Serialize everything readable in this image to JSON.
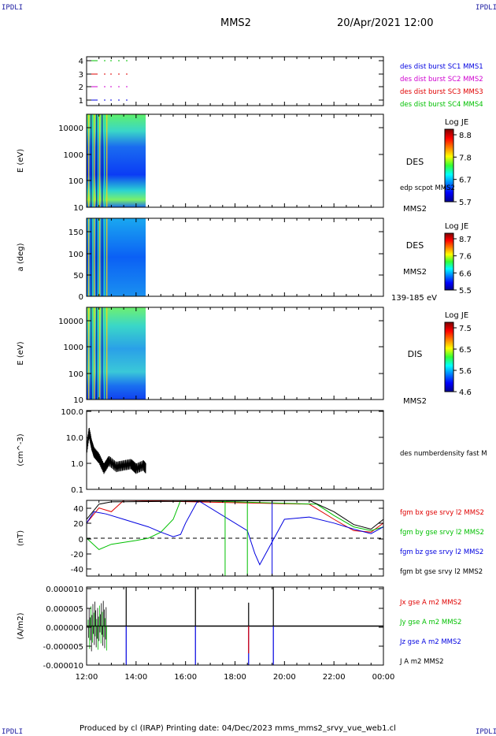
{
  "header": {
    "left_corner": "IPDLI",
    "right_corner": "IPDLI",
    "spacecraft": "MMS2",
    "datetime": "20/Apr/2021 12:00"
  },
  "footer": {
    "text": "Produced by cl (IRAP)   Printing date: 04/Dec/2023   mms_mms2_srvy_vue_web1.cl",
    "bottom_left_corner": "IPDLI",
    "bottom_right_corner": "IPDLI"
  },
  "colors": {
    "red": "#e00000",
    "green": "#00c000",
    "blue": "#0000e0",
    "magenta": "#d000d0",
    "black": "#000000"
  },
  "chart_data": [
    {
      "type": "line",
      "panel": "burst",
      "yticks": [
        "4",
        "3",
        "2",
        "1"
      ],
      "legend": [
        "des dist burst SC1 MMS1",
        "des dist burst SC2 MMS2",
        "des dist burst SC3 MMS3",
        "des dist burst SC4 MMS4"
      ],
      "legend_colors": [
        "#0000e0",
        "#d000d0",
        "#e00000",
        "#00c000"
      ]
    },
    {
      "type": "heatmap",
      "panel": "des_energy",
      "ylabel": "E (eV)",
      "yticks": [
        "10000",
        "1000",
        "100",
        "10"
      ],
      "label": "DES",
      "sublabel": "MMS2",
      "side_note": "edp scpot MMS2",
      "colorbar": {
        "title": "Log JE",
        "ticks": [
          "8.8",
          "7.8",
          "6.7",
          "5.7"
        ]
      }
    },
    {
      "type": "heatmap",
      "panel": "des_pitch",
      "ylabel": "a (deg)",
      "yticks": [
        "150",
        "100",
        "50",
        "0"
      ],
      "label": "DES",
      "sublabel": "MMS2",
      "energy_range": "139-185 eV",
      "colorbar": {
        "title": "Log JE",
        "ticks": [
          "8.7",
          "7.6",
          "6.6",
          "5.5"
        ]
      }
    },
    {
      "type": "heatmap",
      "panel": "dis_energy",
      "ylabel": "E (eV)",
      "yticks": [
        "10000",
        "1000",
        "100",
        "10"
      ],
      "label": "DIS",
      "sublabel": "MMS2",
      "colorbar": {
        "title": "Log JE",
        "ticks": [
          "7.5",
          "6.5",
          "5.6",
          "4.6"
        ]
      }
    },
    {
      "type": "line",
      "panel": "density",
      "ylabel": "(cm^-3)",
      "yticks": [
        "100.0",
        "10.0",
        "1.0",
        "0.1"
      ],
      "legend": [
        "des numberdensity fast M"
      ],
      "series": [
        {
          "name": "des numberdensity fast M",
          "x_hours": [
            12.0,
            12.1,
            12.2,
            12.3,
            12.5,
            12.7,
            12.9,
            13.2,
            13.5,
            13.8,
            14.0,
            14.3,
            14.4
          ],
          "values": [
            3.0,
            15.0,
            5.0,
            2.5,
            1.5,
            0.6,
            1.2,
            0.7,
            0.8,
            0.9,
            0.6,
            0.8,
            0.6
          ]
        }
      ]
    },
    {
      "type": "line",
      "panel": "bfield",
      "ylabel": "(nT)",
      "yticks": [
        "40",
        "20",
        "0",
        "-20",
        "-40"
      ],
      "ylim": [
        -50,
        50
      ],
      "legend": [
        "fgm bx gse srvy l2 MMS2",
        "fgm by gse srvy l2 MMS2",
        "fgm bz gse srvy l2 MMS2",
        "fgm bt gse srvy l2 MMS2"
      ],
      "series": [
        {
          "name": "fgm bx gse srvy l2 MMS2",
          "x_hours": [
            12.0,
            12.5,
            13.0,
            13.5,
            21.0,
            22.0,
            22.8,
            23.5,
            24.0
          ],
          "values": [
            20,
            40,
            35,
            50,
            45,
            25,
            10,
            8,
            20
          ]
        },
        {
          "name": "fgm by gse srvy l2 MMS2",
          "x_hours": [
            12.0,
            12.5,
            13.0,
            14.0,
            14.5,
            15.0,
            15.5,
            15.8,
            21.3,
            22.0,
            22.8,
            23.5,
            24.0
          ],
          "values": [
            0,
            -15,
            -8,
            -3,
            0,
            8,
            25,
            50,
            45,
            30,
            15,
            10,
            15
          ]
        },
        {
          "name": "fgm bz gse srvy l2 MMS2",
          "x_hours": [
            12.0,
            12.3,
            12.8,
            13.5,
            14.5,
            15.0,
            15.5,
            15.8,
            16.0,
            16.5,
            18.5,
            18.8,
            19.0,
            19.5,
            20.0,
            21.0,
            22.0,
            22.8,
            23.5,
            24.0
          ],
          "values": [
            20,
            35,
            32,
            25,
            15,
            8,
            2,
            5,
            20,
            50,
            10,
            -20,
            -35,
            -5,
            25,
            28,
            20,
            12,
            6,
            15
          ]
        },
        {
          "name": "fgm bt gse srvy l2 MMS2",
          "x_hours": [
            12.0,
            12.5,
            13.0,
            21.0,
            22.0,
            22.8,
            23.5,
            24.0
          ],
          "values": [
            25,
            45,
            48,
            50,
            35,
            18,
            12,
            25
          ]
        }
      ]
    },
    {
      "type": "line",
      "panel": "current",
      "ylabel": "(A/m2)",
      "yticks": [
        "0.000010",
        "0.000005",
        "0.000000",
        "-0.000005",
        "-0.000010"
      ],
      "ylim": [
        -1e-05,
        1e-05
      ],
      "legend": [
        "Jx gse A m2 MMS2",
        "Jy gse A m2 MMS2",
        "Jz gse A m2 MMS2",
        "J A m2 MMS2"
      ],
      "xticks": [
        "12:00",
        "14:00",
        "16:00",
        "18:00",
        "20:00",
        "22:00",
        "00:00"
      ]
    }
  ]
}
